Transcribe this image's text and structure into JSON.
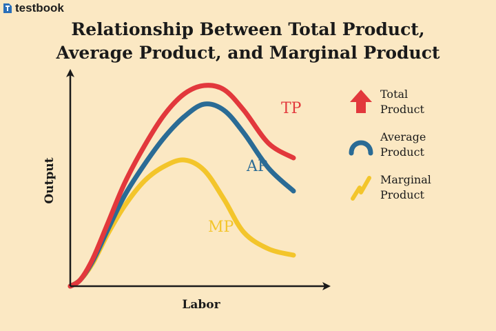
{
  "brand": {
    "name": "testbook"
  },
  "title": {
    "line1": "Relationship Between Total Product,",
    "line2": "Average Product, and Marginal Product"
  },
  "colors": {
    "background": "#fbe8c3",
    "tp": "#e2383c",
    "ap": "#2a6b95",
    "mp": "#f3c52b",
    "axis": "#1a1a1a"
  },
  "chart_data": {
    "type": "line",
    "xlabel": "Labor",
    "ylabel": "Output",
    "xlim": [
      0,
      10
    ],
    "ylim": [
      0,
      10
    ],
    "ticks": "none",
    "series": [
      {
        "name": "TP",
        "x": [
          0,
          0.4,
          0.9,
          1.5,
          2.2,
          3.0,
          3.8,
          4.6,
          5.4,
          6.2,
          7.0,
          8.0,
          9.0
        ],
        "y": [
          0,
          0.3,
          1.3,
          3.0,
          5.0,
          6.8,
          8.3,
          9.3,
          9.7,
          9.5,
          8.5,
          6.9,
          6.2
        ]
      },
      {
        "name": "AP",
        "x": [
          0,
          0.4,
          0.9,
          1.5,
          2.2,
          3.0,
          3.8,
          4.6,
          5.4,
          6.2,
          7.0,
          8.0,
          9.0
        ],
        "y": [
          0,
          0.3,
          1.2,
          2.7,
          4.4,
          5.9,
          7.2,
          8.2,
          8.8,
          8.5,
          7.4,
          5.7,
          4.6
        ]
      },
      {
        "name": "MP",
        "x": [
          0,
          0.4,
          0.9,
          1.5,
          2.2,
          3.0,
          3.8,
          4.6,
          5.4,
          6.2,
          7.0,
          8.0,
          9.0
        ],
        "y": [
          0,
          0.3,
          1.1,
          2.5,
          3.9,
          5.1,
          5.8,
          6.1,
          5.6,
          4.2,
          2.6,
          1.8,
          1.5
        ]
      }
    ],
    "labels": {
      "tp": "TP",
      "ap": "AP",
      "mp": "MP"
    },
    "legend": {
      "position": "right",
      "items": [
        {
          "line1": "Total",
          "line2": "Product",
          "icon": "red-up-arrow-icon"
        },
        {
          "line1": "Average",
          "line2": "Product",
          "icon": "blue-arc-icon"
        },
        {
          "line1": "Marginal",
          "line2": "Product",
          "icon": "yellow-zigzag-icon"
        }
      ]
    },
    "grid": false
  }
}
